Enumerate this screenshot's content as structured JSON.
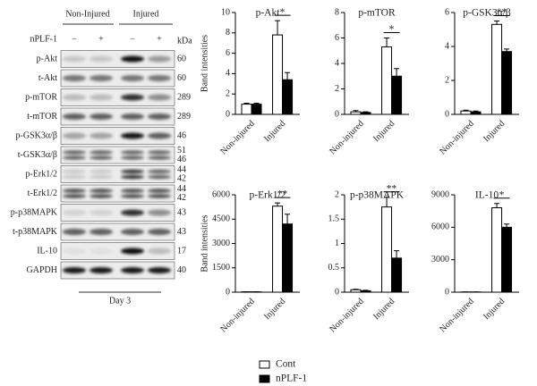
{
  "blot": {
    "groups": [
      "Non-Injured",
      "Injured"
    ],
    "treatment_label": "nPLF-1",
    "lane_marks": [
      "−",
      "+",
      "−",
      "+"
    ],
    "unit": "kDa",
    "rows": [
      {
        "label": "p-Akt",
        "kda": [
          60
        ]
      },
      {
        "label": "t-Akt",
        "kda": [
          60
        ]
      },
      {
        "label": "p-mTOR",
        "kda": [
          289
        ]
      },
      {
        "label": "t-mTOR",
        "kda": [
          289
        ]
      },
      {
        "label": "p-GSK3α/β",
        "kda": [
          46
        ]
      },
      {
        "label": "t-GSK3α/β",
        "kda": [
          51,
          46
        ]
      },
      {
        "label": "p-Erk1/2",
        "kda": [
          44,
          42
        ]
      },
      {
        "label": "t-Erk1/2",
        "kda": [
          44,
          42
        ]
      },
      {
        "label": "p-p38MAPK",
        "kda": [
          43
        ]
      },
      {
        "label": "t-p38MAPK",
        "kda": [
          43
        ]
      },
      {
        "label": "IL-10",
        "kda": [
          17
        ]
      },
      {
        "label": "GAPDH",
        "kda": [
          40
        ]
      }
    ],
    "timepoint": "Day 3"
  },
  "chart_data": [
    {
      "type": "bar",
      "title": "p-Akt",
      "ylabel": "Band intensities",
      "categories": [
        "Non-injured",
        "Injured"
      ],
      "series": [
        {
          "name": "Cont",
          "color": "#ffffff",
          "values": [
            1.0,
            7.8
          ],
          "errors": [
            0.1,
            1.4
          ]
        },
        {
          "name": "nPLF-1",
          "color": "#000000",
          "values": [
            1.0,
            3.4
          ],
          "errors": [
            0.1,
            0.7
          ]
        }
      ],
      "ylim": [
        0,
        10
      ],
      "yticks": [
        0,
        2,
        4,
        6,
        8,
        10
      ],
      "significance": "*"
    },
    {
      "type": "bar",
      "title": "p-mTOR",
      "categories": [
        "Non-injured",
        "Injured"
      ],
      "series": [
        {
          "name": "Cont",
          "color": "#ffffff",
          "values": [
            0.2,
            5.3
          ],
          "errors": [
            0.1,
            0.7
          ]
        },
        {
          "name": "nPLF-1",
          "color": "#000000",
          "values": [
            0.15,
            3.0
          ],
          "errors": [
            0.05,
            0.6
          ]
        }
      ],
      "ylim": [
        0,
        8
      ],
      "yticks": [
        0,
        2,
        4,
        6,
        8
      ],
      "significance": "*"
    },
    {
      "type": "bar",
      "title": "p-GSK3α/β",
      "categories": [
        "Non-injured",
        "Injured"
      ],
      "series": [
        {
          "name": "Cont",
          "color": "#ffffff",
          "values": [
            0.2,
            5.3
          ],
          "errors": [
            0.05,
            0.2
          ]
        },
        {
          "name": "nPLF-1",
          "color": "#000000",
          "values": [
            0.15,
            3.7
          ],
          "errors": [
            0.05,
            0.15
          ]
        }
      ],
      "ylim": [
        0,
        6
      ],
      "yticks": [
        0,
        2,
        4,
        6
      ],
      "significance": "**"
    },
    {
      "type": "bar",
      "title": "p-Erk1/2",
      "ylabel": "Band intensities",
      "categories": [
        "Non-injured",
        "Injured"
      ],
      "series": [
        {
          "name": "Cont",
          "color": "#ffffff",
          "values": [
            20,
            5300
          ],
          "errors": [
            5,
            200
          ]
        },
        {
          "name": "nPLF-1",
          "color": "#000000",
          "values": [
            20,
            4200
          ],
          "errors": [
            5,
            600
          ]
        }
      ],
      "ylim": [
        0,
        6000
      ],
      "yticks": [
        0,
        1500,
        3000,
        4500,
        6000
      ],
      "significance": "**"
    },
    {
      "type": "bar",
      "title": "p-p38MAPK",
      "categories": [
        "Non-injured",
        "Injured"
      ],
      "series": [
        {
          "name": "Cont",
          "color": "#ffffff",
          "values": [
            0.05,
            1.75
          ],
          "errors": [
            0.01,
            0.2
          ]
        },
        {
          "name": "nPLF-1",
          "color": "#000000",
          "values": [
            0.03,
            0.7
          ],
          "errors": [
            0.01,
            0.15
          ]
        }
      ],
      "ylim": [
        0,
        2
      ],
      "yticks": [
        0,
        0.5,
        1,
        1.5,
        2
      ],
      "significance": "**"
    },
    {
      "type": "bar",
      "title": "IL-10",
      "categories": [
        "Non-injured",
        "Injured"
      ],
      "series": [
        {
          "name": "Cont",
          "color": "#ffffff",
          "values": [
            20,
            7800
          ],
          "errors": [
            5,
            400
          ]
        },
        {
          "name": "nPLF-1",
          "color": "#000000",
          "values": [
            20,
            6000
          ],
          "errors": [
            5,
            300
          ]
        }
      ],
      "ylim": [
        0,
        9000
      ],
      "yticks": [
        0,
        3000,
        6000,
        9000
      ],
      "significance": "*"
    }
  ]
}
